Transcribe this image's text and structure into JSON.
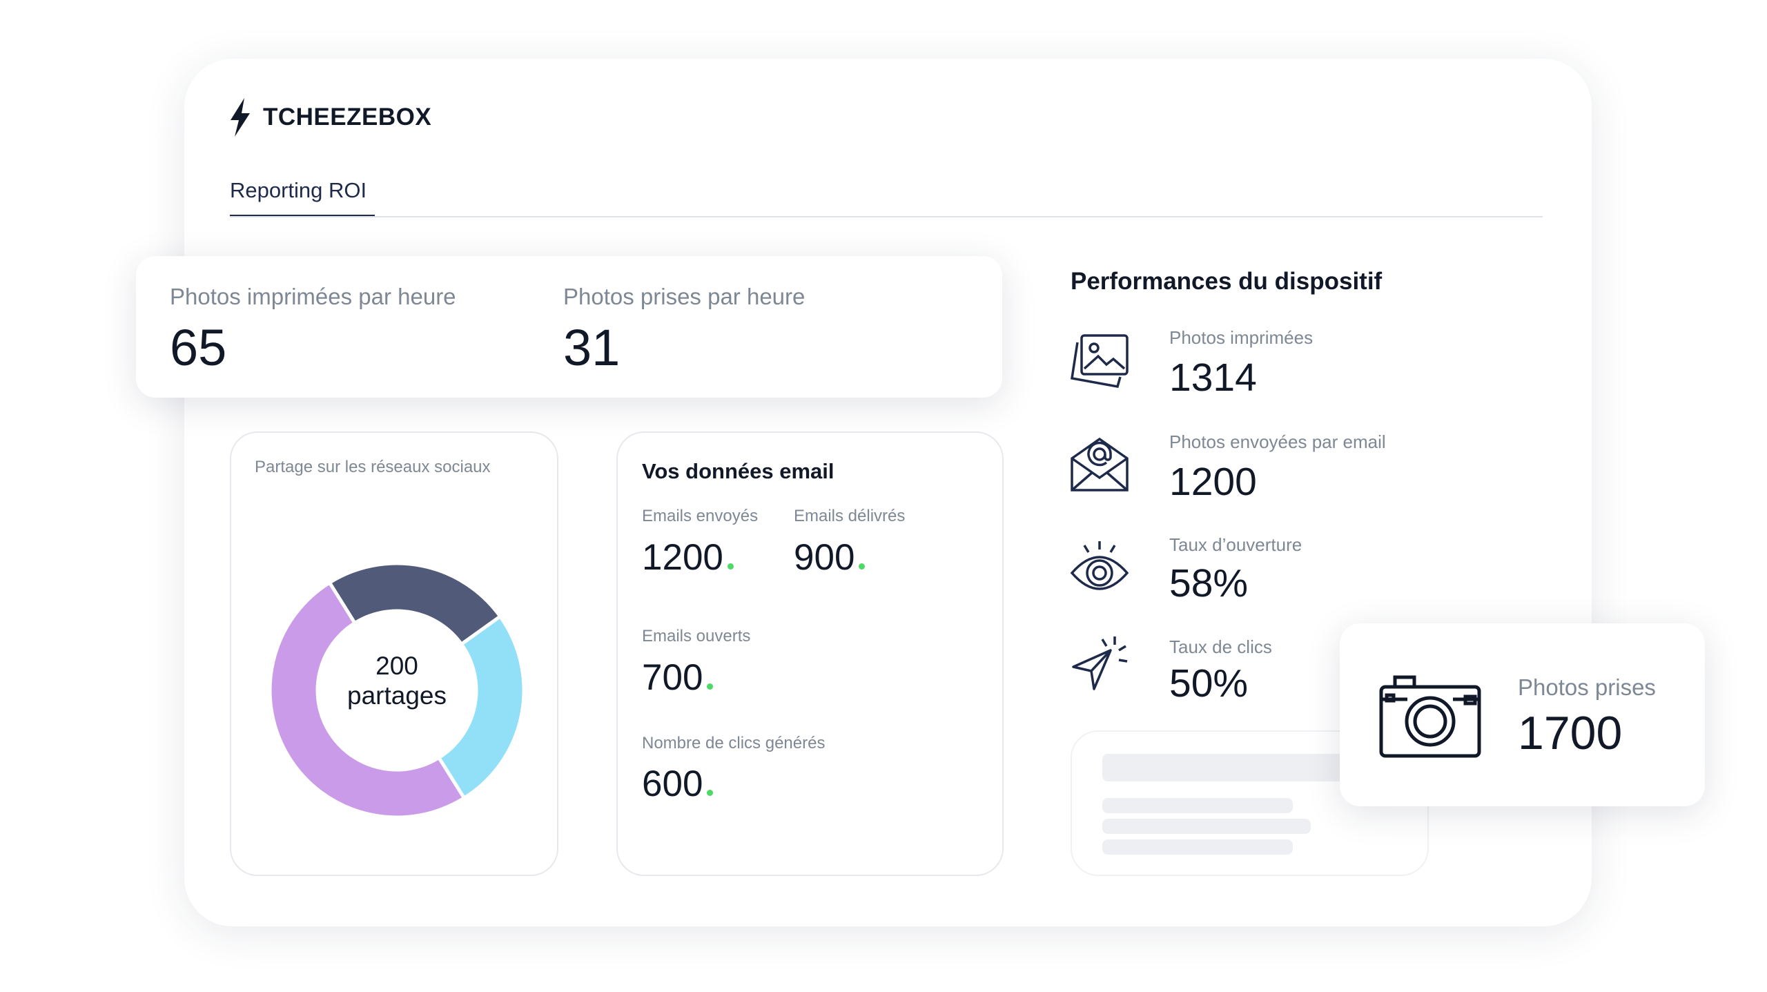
{
  "brand": "TCHEEZEBOX",
  "tab": "Reporting ROI",
  "kpis": [
    {
      "label": "Photos imprimées par heure",
      "value": "65"
    },
    {
      "label": "Photos prises par heure",
      "value": "31"
    }
  ],
  "social": {
    "title": "Partage sur les réseaux sociaux",
    "center": [
      "200",
      "partages"
    ],
    "segments": [
      {
        "color": "#525a7a",
        "value": 48
      },
      {
        "color": "#92e0f8",
        "value": 52
      },
      {
        "color": "#c99be8",
        "value": 100
      }
    ]
  },
  "email": {
    "title": "Vos données email",
    "items": [
      {
        "label": "Emails envoyés",
        "value": "1200"
      },
      {
        "label": "Emails délivrés",
        "value": "900"
      },
      {
        "label": "Emails ouverts",
        "value": "700"
      },
      {
        "label": "Nombre de clics générés",
        "value": "600"
      }
    ]
  },
  "performance": {
    "title": "Performances du dispositif",
    "items": [
      {
        "label": "Photos imprimées",
        "value": "1314"
      },
      {
        "label": "Photos envoyées par email",
        "value": "1200"
      },
      {
        "label": "Taux d’ouverture",
        "value": "58%"
      },
      {
        "label": "Taux de clics",
        "value": "50%"
      }
    ]
  },
  "photos_card": {
    "label": "Photos prises",
    "value": "1700"
  }
}
